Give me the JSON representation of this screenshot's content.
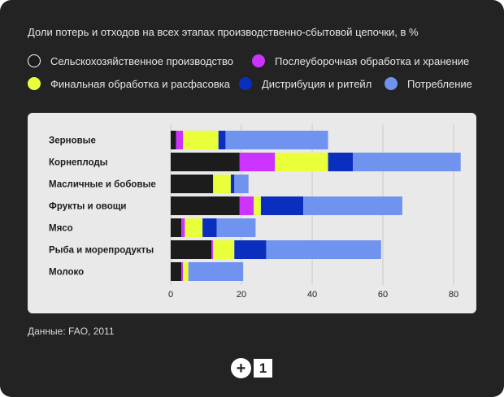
{
  "chart_data": {
    "type": "bar",
    "orientation": "horizontal",
    "stacked": true,
    "title": "Доли потерь и отходов на всех этапах производственно-сбытовой цепочки, в %",
    "categories": [
      "Зерновые",
      "Корнеплоды",
      "Масличные и бобовые",
      "Фрукты и овощи",
      "Мясо",
      "Рыба и морепродукты",
      "Молоко"
    ],
    "series": [
      {
        "name": "Сельскохозяйственное производство",
        "color": "#1c1c1c",
        "values": [
          1.5,
          19.5,
          12,
          19.5,
          3,
          11.5,
          3
        ]
      },
      {
        "name": "Послеуборочная обработка и хранение",
        "color": "#cc33ff",
        "values": [
          2,
          10,
          0,
          4,
          1,
          0.5,
          0.5
        ]
      },
      {
        "name": "Финальная обработка и расфасовка",
        "color": "#e8ff3a",
        "values": [
          10,
          15,
          5,
          2,
          5,
          6,
          1.5
        ]
      },
      {
        "name": "Дистрибуция и ритейл",
        "color": "#0a2fbf",
        "values": [
          2,
          7,
          1,
          12,
          4,
          9,
          0
        ]
      },
      {
        "name": "Потребление",
        "color": "#6f93ee",
        "values": [
          29,
          30.5,
          4,
          28,
          11,
          32.5,
          15.5
        ]
      }
    ],
    "xlim": [
      0,
      85
    ],
    "xticks": [
      0,
      20,
      40,
      60,
      80
    ],
    "grid": true,
    "legend_position": "top",
    "source": "Данные: FAO, 2011"
  },
  "logo": {
    "left": "+",
    "right": "1"
  }
}
